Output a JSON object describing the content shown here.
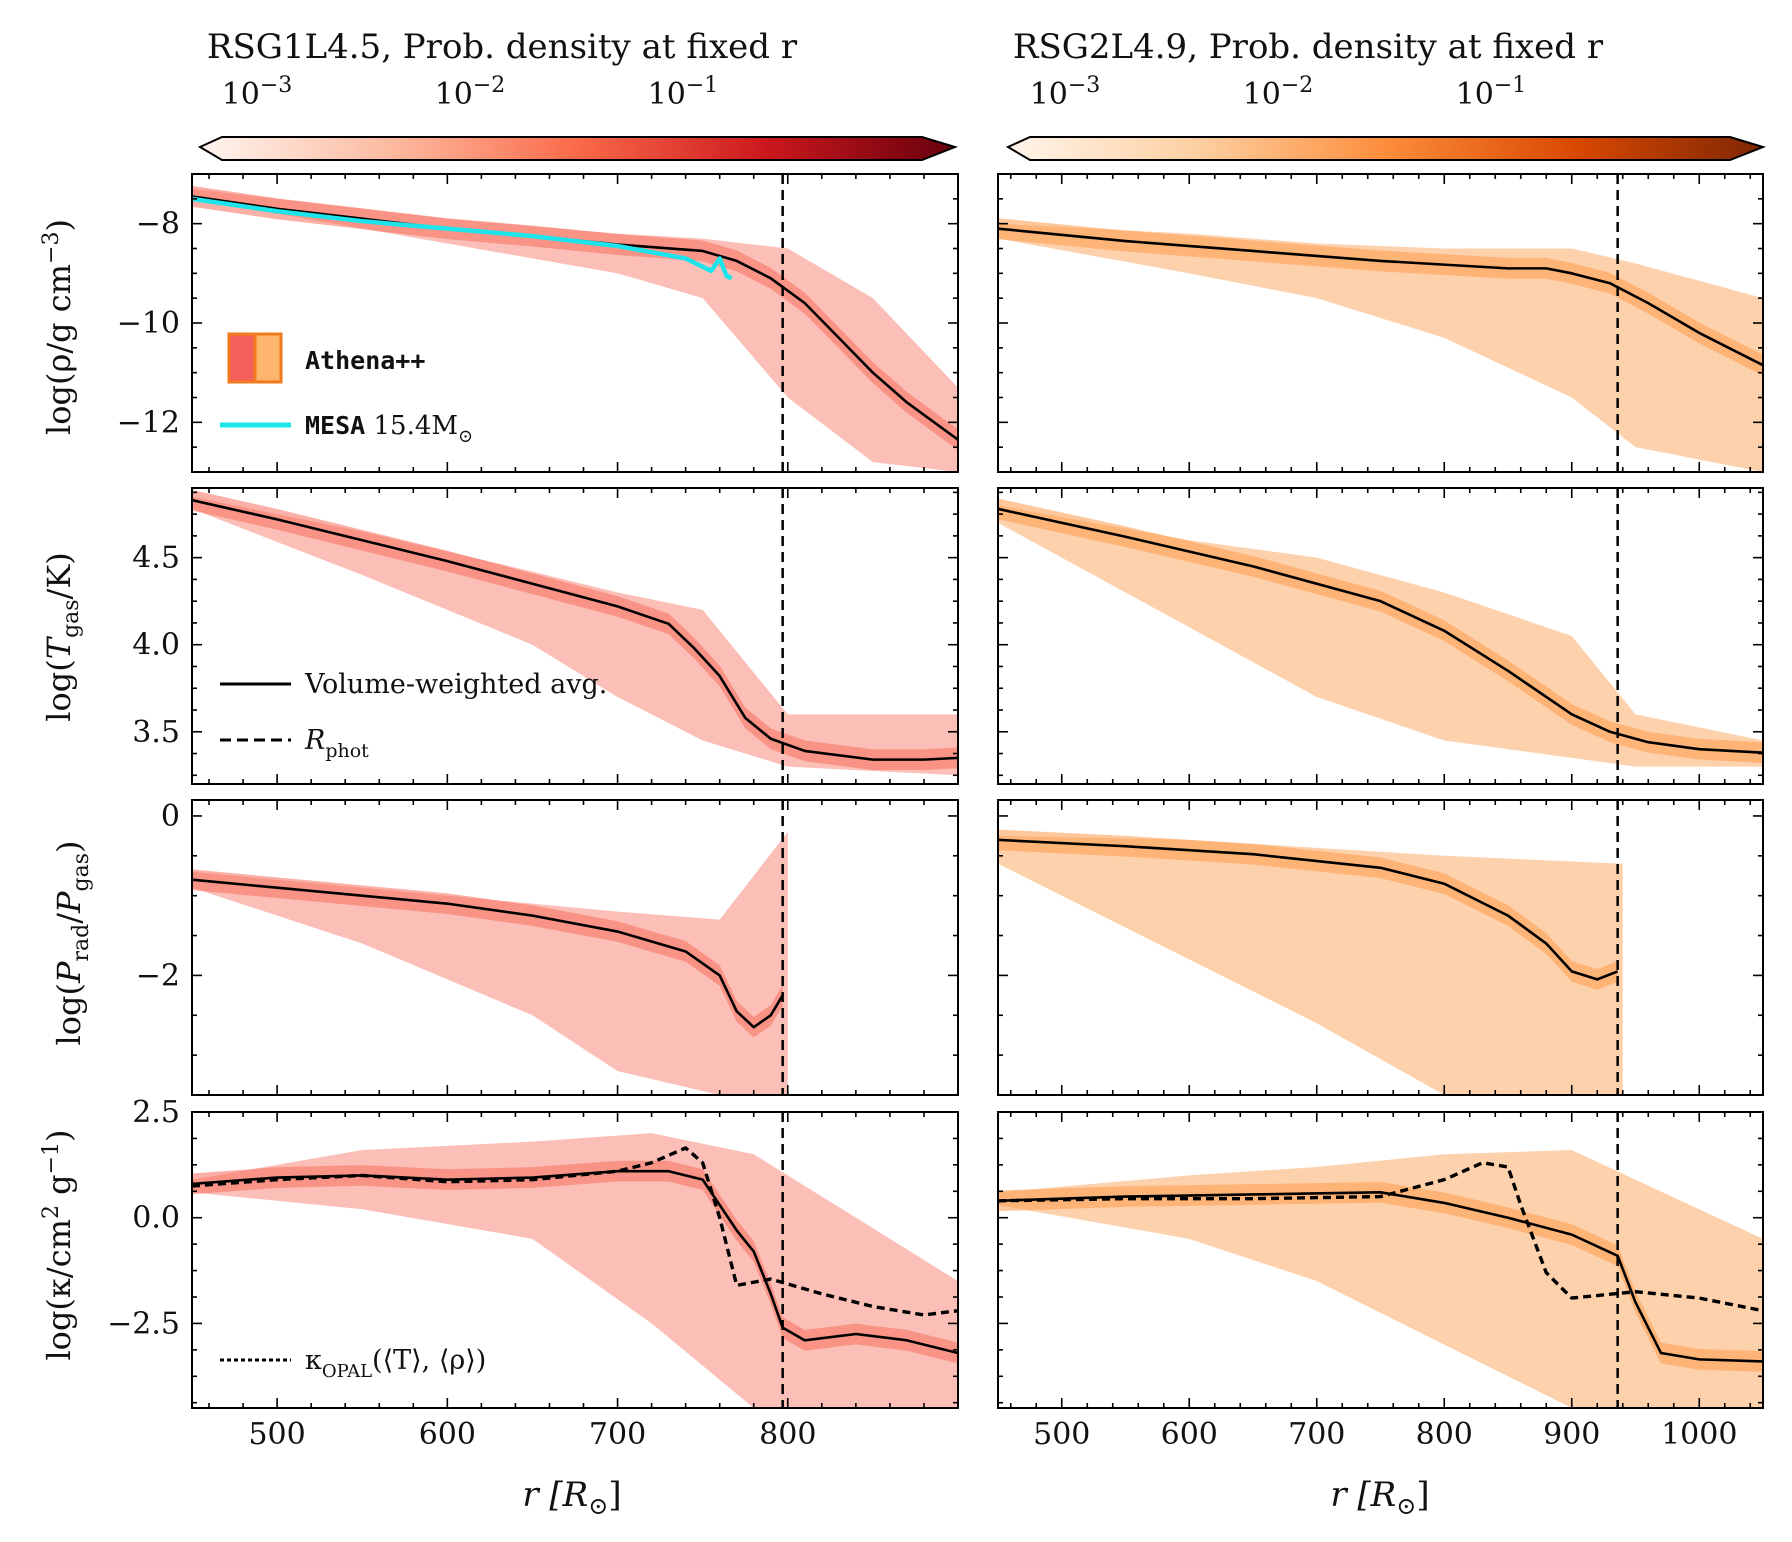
{
  "figure": {
    "columns": [
      {
        "colorbar": {
          "title": "RSG1L4.5, Prob. density at fixed r",
          "ticks": [
            "10",
            "10",
            "10"
          ],
          "tick_exps": [
            "−3",
            "−2",
            "−1"
          ],
          "palette": [
            "#fff5f0",
            "#fcbba1",
            "#fb6a4a",
            "#cb181d",
            "#67000d"
          ]
        },
        "xlabel": "r [R",
        "xlabel_sub": "⊙",
        "xlabel_end": "]",
        "xticks": [
          "500",
          "600",
          "700",
          "800"
        ]
      },
      {
        "colorbar": {
          "title": "RSG2L4.9, Prob. density at fixed r",
          "ticks": [
            "10",
            "10",
            "10"
          ],
          "tick_exps": [
            "−3",
            "−2",
            "−1"
          ],
          "palette": [
            "#fff5eb",
            "#fdd0a2",
            "#fd8d3c",
            "#d94801",
            "#7f2704"
          ]
        },
        "xlabel": "r [R",
        "xlabel_sub": "⊙",
        "xlabel_end": "]",
        "xticks": [
          "500",
          "600",
          "700",
          "800",
          "900",
          "1000"
        ]
      }
    ],
    "rows": [
      {
        "ylabel": "log(ρ/g cm⁻³)",
        "yticks": [
          "−8",
          "−10",
          "−12"
        ]
      },
      {
        "ylabel": "log(T_gas/K)",
        "yticks": [
          "4.5",
          "4.0",
          "3.5"
        ]
      },
      {
        "ylabel": "log(P_rad/P_gas)",
        "yticks": [
          "0",
          "−2"
        ]
      },
      {
        "ylabel": "log(κ/cm² g⁻¹)",
        "yticks": [
          "2.5",
          "0.0",
          "−2.5"
        ]
      }
    ],
    "legends": {
      "athena": "Athena++",
      "mesa_code": "MESA",
      "mesa_mass": "15.4M",
      "mesa_sun": "⊙",
      "vw_avg": "Volume-weighted avg.",
      "rphot": "R",
      "rphot_sub": "phot",
      "kopal": "κ",
      "kopal_sub": "OPAL",
      "kopal_args": "(⟨T⟩, ⟨ρ⟩)"
    },
    "colors": {
      "mesa": "#1de3ea",
      "line": "#000000",
      "athena_red": "#f6605a",
      "athena_orange": "#fdb46c",
      "athena_edge": "#f07a1c"
    }
  },
  "chart_data": [
    {
      "panel": "RSG1L4.5 density",
      "type": "line",
      "xlim": [
        450,
        900
      ],
      "ylim": [
        -13,
        -7
      ],
      "xlabel": "r [R⊙]",
      "ylabel": "log(ρ/g cm⁻³)",
      "r_phot": 797,
      "series": [
        {
          "name": "Volume-weighted avg.",
          "x": [
            450,
            500,
            550,
            600,
            650,
            700,
            750,
            770,
            790,
            810,
            830,
            850,
            870,
            900
          ],
          "y": [
            -7.45,
            -7.7,
            -7.9,
            -8.1,
            -8.25,
            -8.42,
            -8.55,
            -8.75,
            -9.1,
            -9.6,
            -10.3,
            -11.0,
            -11.6,
            -12.35
          ]
        },
        {
          "name": "MESA 15.4M⊙",
          "x": [
            450,
            500,
            550,
            600,
            650,
            700,
            740,
            755,
            760,
            764,
            767
          ],
          "y": [
            -7.5,
            -7.75,
            -7.95,
            -8.1,
            -8.25,
            -8.45,
            -8.7,
            -8.95,
            -8.7,
            -9.05,
            -9.1
          ]
        }
      ],
      "density_band": [
        {
          "x": 450,
          "lo": -7.5,
          "hi": -7.3
        },
        {
          "x": 600,
          "lo": -8.4,
          "hi": -7.9
        },
        {
          "x": 700,
          "lo": -9.0,
          "hi": -8.2
        },
        {
          "x": 750,
          "lo": -9.5,
          "hi": -8.3
        },
        {
          "x": 800,
          "lo": -11.5,
          "hi": -8.5
        },
        {
          "x": 850,
          "lo": -12.8,
          "hi": -9.5
        },
        {
          "x": 900,
          "lo": -13,
          "hi": -11.3
        }
      ]
    },
    {
      "panel": "RSG2L4.9 density",
      "type": "line",
      "xlim": [
        450,
        1050
      ],
      "ylim": [
        -13,
        -7
      ],
      "xlabel": "r [R⊙]",
      "ylabel": "log(ρ/g cm⁻³)",
      "r_phot": 936,
      "series": [
        {
          "name": "Volume-weighted avg.",
          "x": [
            450,
            550,
            650,
            750,
            850,
            880,
            900,
            930,
            960,
            1000,
            1050
          ],
          "y": [
            -8.1,
            -8.35,
            -8.55,
            -8.75,
            -8.9,
            -8.9,
            -9.0,
            -9.2,
            -9.6,
            -10.2,
            -10.85
          ]
        }
      ],
      "density_band": [
        {
          "x": 450,
          "lo": -8.3,
          "hi": -8.0
        },
        {
          "x": 600,
          "lo": -9.0,
          "hi": -8.2
        },
        {
          "x": 700,
          "lo": -9.5,
          "hi": -8.4
        },
        {
          "x": 800,
          "lo": -10.3,
          "hi": -8.5
        },
        {
          "x": 900,
          "lo": -11.5,
          "hi": -8.5
        },
        {
          "x": 950,
          "lo": -12.5,
          "hi": -8.8
        },
        {
          "x": 1050,
          "lo": -13,
          "hi": -9.5
        }
      ]
    },
    {
      "panel": "RSG1L4.5 temperature",
      "type": "line",
      "xlim": [
        450,
        900
      ],
      "ylim": [
        3.2,
        4.9
      ],
      "xlabel": "r [R⊙]",
      "ylabel": "log(T_gas/K)",
      "r_phot": 797,
      "series": [
        {
          "name": "Volume-weighted avg.",
          "x": [
            450,
            500,
            550,
            600,
            650,
            700,
            730,
            745,
            760,
            775,
            790,
            810,
            850,
            880,
            900
          ],
          "y": [
            4.83,
            4.72,
            4.6,
            4.48,
            4.35,
            4.22,
            4.12,
            3.98,
            3.82,
            3.58,
            3.46,
            3.39,
            3.34,
            3.34,
            3.35
          ]
        }
      ],
      "density_band": [
        {
          "x": 450,
          "lo": 4.78,
          "hi": 4.85
        },
        {
          "x": 550,
          "lo": 4.4,
          "hi": 4.65
        },
        {
          "x": 650,
          "lo": 4.0,
          "hi": 4.42
        },
        {
          "x": 700,
          "lo": 3.7,
          "hi": 4.3
        },
        {
          "x": 750,
          "lo": 3.45,
          "hi": 4.2
        },
        {
          "x": 800,
          "lo": 3.3,
          "hi": 3.6
        },
        {
          "x": 900,
          "lo": 3.25,
          "hi": 3.6
        }
      ]
    },
    {
      "panel": "RSG2L4.9 temperature",
      "type": "line",
      "xlim": [
        450,
        1050
      ],
      "ylim": [
        3.2,
        4.9
      ],
      "xlabel": "r [R⊙]",
      "ylabel": "log(T_gas/K)",
      "r_phot": 936,
      "series": [
        {
          "name": "Volume-weighted avg.",
          "x": [
            450,
            550,
            650,
            750,
            800,
            850,
            900,
            930,
            960,
            1000,
            1050
          ],
          "y": [
            4.78,
            4.62,
            4.45,
            4.25,
            4.08,
            3.85,
            3.6,
            3.5,
            3.44,
            3.4,
            3.38
          ]
        }
      ],
      "density_band": [
        {
          "x": 450,
          "lo": 4.7,
          "hi": 4.8
        },
        {
          "x": 600,
          "lo": 4.1,
          "hi": 4.6
        },
        {
          "x": 700,
          "lo": 3.7,
          "hi": 4.5
        },
        {
          "x": 800,
          "lo": 3.45,
          "hi": 4.3
        },
        {
          "x": 900,
          "lo": 3.35,
          "hi": 4.05
        },
        {
          "x": 950,
          "lo": 3.3,
          "hi": 3.6
        },
        {
          "x": 1050,
          "lo": 3.3,
          "hi": 3.45
        }
      ]
    },
    {
      "panel": "RSG1L4.5 pressure ratio",
      "type": "line",
      "xlim": [
        450,
        900
      ],
      "ylim": [
        -3.5,
        0.2
      ],
      "xlabel": "r [R⊙]",
      "ylabel": "log(P_rad/P_gas)",
      "r_phot": 797,
      "series": [
        {
          "name": "Volume-weighted avg.",
          "x": [
            450,
            500,
            550,
            600,
            650,
            700,
            740,
            760,
            770,
            780,
            790,
            797
          ],
          "y": [
            -0.8,
            -0.9,
            -1.0,
            -1.1,
            -1.25,
            -1.45,
            -1.7,
            -2.0,
            -2.45,
            -2.65,
            -2.5,
            -2.25
          ]
        }
      ],
      "density_band": [
        {
          "x": 450,
          "lo": -0.9,
          "hi": -0.7
        },
        {
          "x": 550,
          "lo": -1.6,
          "hi": -0.9
        },
        {
          "x": 650,
          "lo": -2.5,
          "hi": -1.1
        },
        {
          "x": 700,
          "lo": -3.2,
          "hi": -1.2
        },
        {
          "x": 760,
          "lo": -3.5,
          "hi": -1.3
        },
        {
          "x": 800,
          "lo": -3.5,
          "hi": -0.2
        }
      ]
    },
    {
      "panel": "RSG2L4.9 pressure ratio",
      "type": "line",
      "xlim": [
        450,
        1050
      ],
      "ylim": [
        -3.5,
        0.2
      ],
      "xlabel": "r [R⊙]",
      "ylabel": "log(P_rad/P_gas)",
      "r_phot": 936,
      "series": [
        {
          "name": "Volume-weighted avg.",
          "x": [
            450,
            550,
            650,
            750,
            800,
            850,
            880,
            900,
            920,
            936
          ],
          "y": [
            -0.3,
            -0.38,
            -0.48,
            -0.65,
            -0.85,
            -1.25,
            -1.6,
            -1.95,
            -2.05,
            -1.95
          ]
        }
      ],
      "density_band": [
        {
          "x": 450,
          "lo": -0.6,
          "hi": -0.25
        },
        {
          "x": 600,
          "lo": -1.8,
          "hi": -0.3
        },
        {
          "x": 700,
          "lo": -2.6,
          "hi": -0.4
        },
        {
          "x": 800,
          "lo": -3.5,
          "hi": -0.5
        },
        {
          "x": 940,
          "lo": -3.5,
          "hi": -0.6
        }
      ]
    },
    {
      "panel": "RSG1L4.5 opacity",
      "type": "line",
      "xlim": [
        450,
        900
      ],
      "ylim": [
        -4.5,
        2.5
      ],
      "xlabel": "r [R⊙]",
      "ylabel": "log(κ/cm² g⁻¹)",
      "r_phot": 797,
      "series": [
        {
          "name": "Volume-weighted avg.",
          "x": [
            450,
            500,
            550,
            600,
            650,
            700,
            730,
            750,
            760,
            770,
            780,
            790,
            797,
            810,
            840,
            870,
            900
          ],
          "y": [
            0.8,
            0.95,
            1.0,
            0.9,
            0.95,
            1.1,
            1.1,
            0.9,
            0.3,
            -0.3,
            -0.8,
            -1.8,
            -2.6,
            -2.9,
            -2.75,
            -2.9,
            -3.2
          ]
        },
        {
          "name": "κ_OPAL(⟨T⟩,⟨ρ⟩)",
          "x": [
            450,
            500,
            550,
            600,
            650,
            700,
            720,
            740,
            750,
            760,
            770,
            790,
            820,
            850,
            880,
            900
          ],
          "y": [
            0.75,
            0.9,
            1.0,
            0.85,
            0.9,
            1.1,
            1.3,
            1.65,
            1.3,
            0.0,
            -1.6,
            -1.45,
            -1.8,
            -2.1,
            -2.3,
            -2.2
          ]
        }
      ],
      "density_band": [
        {
          "x": 450,
          "lo": 0.6,
          "hi": 0.9
        },
        {
          "x": 550,
          "lo": 0.2,
          "hi": 1.6
        },
        {
          "x": 650,
          "lo": -0.5,
          "hi": 1.8
        },
        {
          "x": 720,
          "lo": -2.5,
          "hi": 2.0
        },
        {
          "x": 780,
          "lo": -4.5,
          "hi": 1.5
        },
        {
          "x": 900,
          "lo": -4.5,
          "hi": -1.5
        }
      ]
    },
    {
      "panel": "RSG2L4.9 opacity",
      "type": "line",
      "xlim": [
        450,
        1050
      ],
      "ylim": [
        -4.5,
        2.5
      ],
      "xlabel": "r [R⊙]",
      "ylabel": "log(κ/cm² g⁻¹)",
      "r_phot": 936,
      "series": [
        {
          "name": "Volume-weighted avg.",
          "x": [
            450,
            550,
            650,
            750,
            800,
            850,
            900,
            936,
            950,
            970,
            1000,
            1050
          ],
          "y": [
            0.4,
            0.5,
            0.55,
            0.6,
            0.35,
            0.0,
            -0.4,
            -0.9,
            -2.0,
            -3.2,
            -3.35,
            -3.4
          ]
        },
        {
          "name": "κ_OPAL(⟨T⟩,⟨ρ⟩)",
          "x": [
            450,
            550,
            650,
            750,
            800,
            830,
            850,
            860,
            880,
            900,
            950,
            1000,
            1050
          ],
          "y": [
            0.4,
            0.45,
            0.45,
            0.5,
            0.9,
            1.3,
            1.2,
            0.3,
            -1.3,
            -1.9,
            -1.75,
            -1.9,
            -2.2
          ]
        }
      ],
      "density_band": [
        {
          "x": 450,
          "lo": 0.3,
          "hi": 0.6
        },
        {
          "x": 600,
          "lo": -0.5,
          "hi": 1.0
        },
        {
          "x": 700,
          "lo": -1.5,
          "hi": 1.2
        },
        {
          "x": 800,
          "lo": -3.0,
          "hi": 1.5
        },
        {
          "x": 900,
          "lo": -4.5,
          "hi": 1.6
        },
        {
          "x": 1050,
          "lo": -4.5,
          "hi": -0.5
        }
      ]
    }
  ]
}
